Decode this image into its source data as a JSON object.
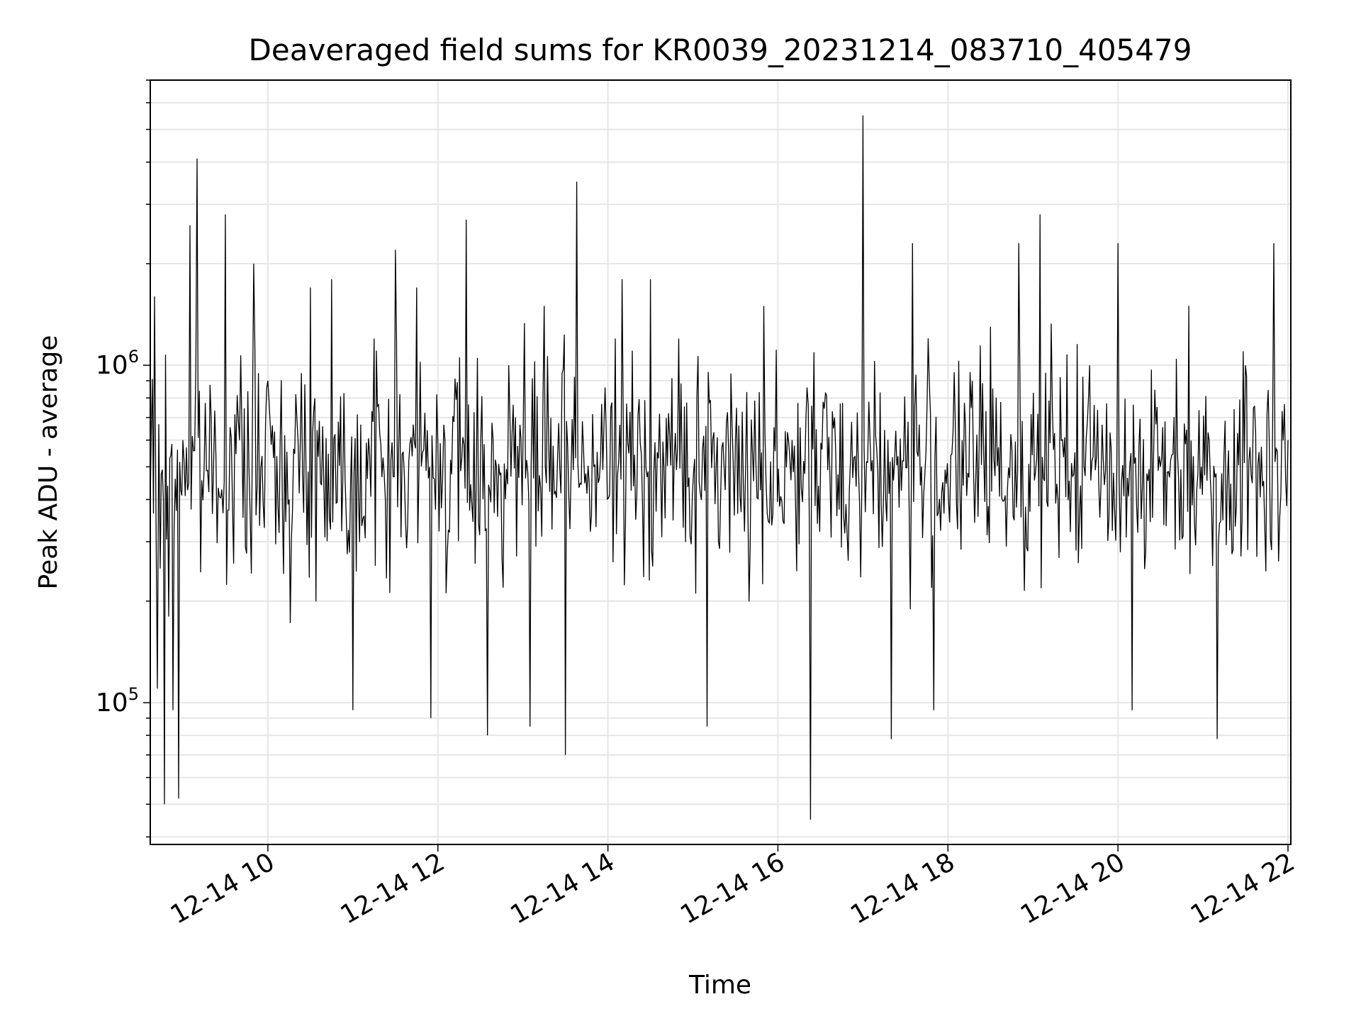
{
  "chart_data": {
    "type": "line",
    "title": "Deaveraged field sums for KR0039_20231214_083710_405479",
    "xlabel": "Time",
    "ylabel": "Peak ADU - average",
    "x_ticks": [
      "12-14 10",
      "12-14 12",
      "12-14 14",
      "12-14 16",
      "12-14 18",
      "12-14 20",
      "12-14 22"
    ],
    "y_ticks": [
      {
        "base": "10",
        "exp": "5",
        "value": 100000
      },
      {
        "base": "10",
        "exp": "6",
        "value": 1000000
      }
    ],
    "y_scale": "log",
    "xlim": [
      "2023-12-14 08:37",
      "2023-12-14 22:02"
    ],
    "ylim": [
      38000,
      7000000
    ],
    "grid": true,
    "series": [
      {
        "color": "#000000",
        "x": [
          "2023-12-14 08:37",
          "2023-12-14 08:40",
          "2023-12-14 08:42",
          "2023-12-14 08:44",
          "2023-12-14 08:47",
          "2023-12-14 08:50",
          "2023-12-14 08:53",
          "2023-12-14 08:57",
          "2023-12-14 09:00",
          "2023-12-14 09:05",
          "2023-12-14 09:10",
          "2023-12-14 09:15",
          "2023-12-14 09:20",
          "2023-12-14 09:30",
          "2023-12-14 09:40",
          "2023-12-14 09:50",
          "2023-12-14 10:00",
          "2023-12-14 10:15",
          "2023-12-14 10:30",
          "2023-12-14 10:45",
          "2023-12-14 11:00",
          "2023-12-14 11:15",
          "2023-12-14 11:30",
          "2023-12-14 11:45",
          "2023-12-14 11:55",
          "2023-12-14 12:05",
          "2023-12-14 12:20",
          "2023-12-14 12:35",
          "2023-12-14 12:50",
          "2023-12-14 13:05",
          "2023-12-14 13:15",
          "2023-12-14 13:30",
          "2023-12-14 13:38",
          "2023-12-14 13:50",
          "2023-12-14 14:10",
          "2023-12-14 14:30",
          "2023-12-14 14:50",
          "2023-12-14 15:10",
          "2023-12-14 15:30",
          "2023-12-14 15:50",
          "2023-12-14 16:10",
          "2023-12-14 16:23",
          "2023-12-14 16:40",
          "2023-12-14 17:00",
          "2023-12-14 17:05",
          "2023-12-14 17:20",
          "2023-12-14 17:35",
          "2023-12-14 17:50",
          "2023-12-14 18:10",
          "2023-12-14 18:30",
          "2023-12-14 18:50",
          "2023-12-14 19:05",
          "2023-12-14 19:20",
          "2023-12-14 19:40",
          "2023-12-14 20:00",
          "2023-12-14 20:10",
          "2023-12-14 20:30",
          "2023-12-14 20:50",
          "2023-12-14 21:10",
          "2023-12-14 21:30",
          "2023-12-14 21:50",
          "2023-12-14 22:00"
        ],
        "y": [
          400000,
          1600000,
          110000,
          250000,
          50000,
          180000,
          95000,
          52000,
          600000,
          2600000,
          4100000,
          500000,
          700000,
          2800000,
          600000,
          2000000,
          900000,
          400000,
          1700000,
          1800000,
          95000,
          1200000,
          2200000,
          1700000,
          90000,
          600000,
          2700000,
          80000,
          1000000,
          85000,
          1500000,
          70000,
          3500000,
          500000,
          1800000,
          1800000,
          1200000,
          85000,
          600000,
          1500000,
          600000,
          45000,
          700000,
          5500000,
          600000,
          78000,
          2300000,
          95000,
          600000,
          1300000,
          2300000,
          2800000,
          600000,
          1000000,
          2300000,
          95000,
          500000,
          1500000,
          78000,
          1000000,
          2300000,
          600000
        ]
      }
    ]
  }
}
